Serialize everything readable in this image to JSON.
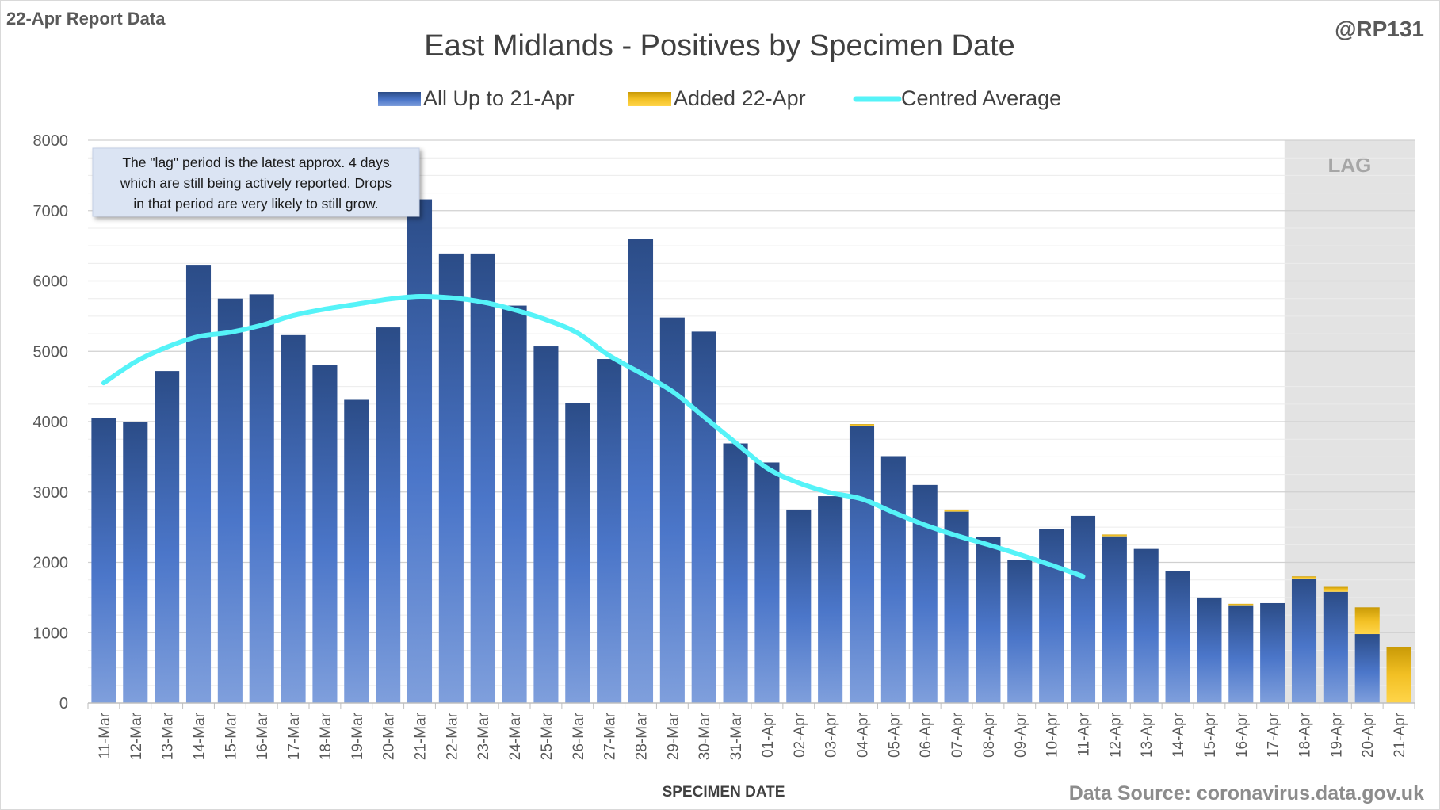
{
  "report_label": "22-Apr Report Data",
  "handle": "@RP131",
  "source": "Data Source: coronavirus.data.gov.uk",
  "annotation_lines": [
    "The \"lag\" period is the latest approx. 4 days",
    "which are still being actively reported.  Drops",
    "in that period are very likely to still grow."
  ],
  "lag_label": "LAG",
  "colors": {
    "bar_dark": "#2b4c87",
    "bar_light": "#7f9fdc",
    "added_dark": "#c99a06",
    "added_light": "#ffd54a",
    "average_line": "#55f3f8",
    "lag_shade": "#e3e3e3"
  },
  "chart_data": {
    "type": "bar",
    "title": "East Midlands - Positives by Specimen Date",
    "xlabel": "SPECIMEN DATE",
    "ylabel": "",
    "ylim": [
      0,
      8000
    ],
    "yticks": [
      0,
      1000,
      2000,
      3000,
      4000,
      5000,
      6000,
      7000,
      8000
    ],
    "legend_position": "top-center",
    "stacked": true,
    "grid": true,
    "lag_start": "18-Apr",
    "categories": [
      "11-Mar",
      "12-Mar",
      "13-Mar",
      "14-Mar",
      "15-Mar",
      "16-Mar",
      "17-Mar",
      "18-Mar",
      "19-Mar",
      "20-Mar",
      "21-Mar",
      "22-Mar",
      "23-Mar",
      "24-Mar",
      "25-Mar",
      "26-Mar",
      "27-Mar",
      "28-Mar",
      "29-Mar",
      "30-Mar",
      "31-Mar",
      "01-Apr",
      "02-Apr",
      "03-Apr",
      "04-Apr",
      "05-Apr",
      "06-Apr",
      "07-Apr",
      "08-Apr",
      "09-Apr",
      "10-Apr",
      "11-Apr",
      "12-Apr",
      "13-Apr",
      "14-Apr",
      "15-Apr",
      "16-Apr",
      "17-Apr",
      "18-Apr",
      "19-Apr",
      "20-Apr",
      "21-Apr"
    ],
    "series": [
      {
        "name": "All Up to 21-Apr",
        "values": [
          4050,
          4000,
          4720,
          6230,
          5750,
          5810,
          5230,
          4810,
          4310,
          5340,
          7160,
          6390,
          6390,
          5650,
          5070,
          4270,
          4890,
          6600,
          5480,
          5280,
          3690,
          3420,
          2750,
          2940,
          3940,
          3510,
          3100,
          2720,
          2360,
          2030,
          2470,
          2660,
          2370,
          2190,
          1880,
          1500,
          1390,
          1420,
          1770,
          1580,
          980,
          0
        ]
      },
      {
        "name": "Added 22-Apr",
        "values": [
          0,
          0,
          0,
          0,
          0,
          0,
          0,
          0,
          0,
          0,
          0,
          0,
          0,
          0,
          0,
          0,
          0,
          0,
          0,
          0,
          0,
          0,
          0,
          0,
          25,
          0,
          0,
          30,
          0,
          0,
          0,
          0,
          25,
          0,
          0,
          0,
          20,
          0,
          30,
          70,
          380,
          800
        ]
      },
      {
        "name": "Centred Average",
        "type": "line",
        "values": [
          4550,
          4850,
          5060,
          5210,
          5270,
          5370,
          5510,
          5600,
          5670,
          5740,
          5780,
          5760,
          5700,
          5590,
          5450,
          5260,
          4940,
          4690,
          4430,
          4070,
          3700,
          3340,
          3130,
          2990,
          2900,
          2710,
          2530,
          2380,
          2250,
          2110,
          1960,
          1800,
          null,
          null,
          null,
          null,
          null,
          null,
          null,
          null,
          null,
          null
        ]
      }
    ]
  }
}
